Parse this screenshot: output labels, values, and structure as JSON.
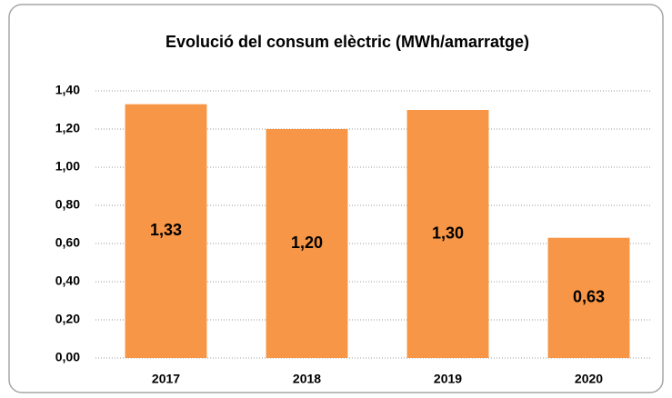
{
  "chart_data": {
    "type": "bar",
    "title": "Evolució del consum elèctric (MWh/amarratge)",
    "categories": [
      "2017",
      "2018",
      "2019",
      "2020"
    ],
    "values": [
      1.33,
      1.2,
      1.3,
      0.63
    ],
    "value_labels": [
      "1,33",
      "1,20",
      "1,30",
      "0,63"
    ],
    "color": "#f79646",
    "ylim": [
      0,
      1.4
    ],
    "yticks": [
      {
        "value": 0,
        "label": "0,00"
      },
      {
        "value": 0.2,
        "label": "0,20"
      },
      {
        "value": 0.4,
        "label": "0,40"
      },
      {
        "value": 0.6,
        "label": "0,60"
      },
      {
        "value": 0.8,
        "label": "0,80"
      },
      {
        "value": 1.0,
        "label": "1,00"
      },
      {
        "value": 1.2,
        "label": "1,20"
      },
      {
        "value": 1.4,
        "label": "1,40"
      }
    ],
    "grid": true
  }
}
